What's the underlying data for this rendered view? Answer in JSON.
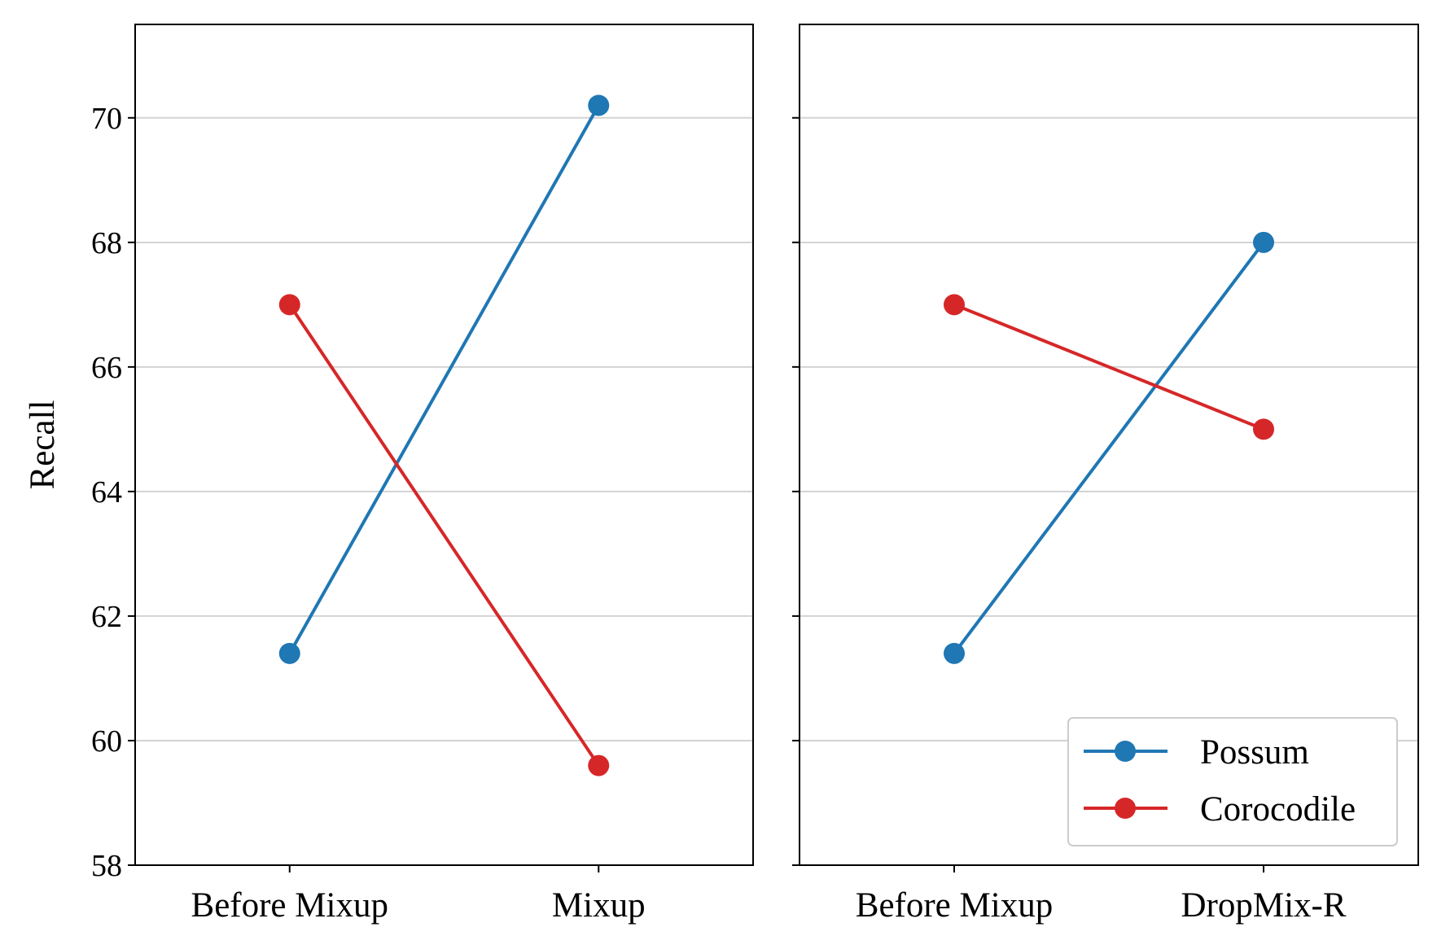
{
  "chart_data": [
    {
      "type": "line",
      "categories": [
        "Before Mixup",
        "Mixup"
      ],
      "ylabel": "Recall",
      "xlabel": "",
      "ylim": [
        58,
        71.5
      ],
      "yticks": [
        58,
        60,
        62,
        64,
        66,
        68,
        70
      ],
      "grid": "horizontal",
      "series": [
        {
          "name": "Possum",
          "values": [
            61.4,
            70.2
          ],
          "color": "#1f77b4"
        },
        {
          "name": "Corocodile",
          "values": [
            67.0,
            59.6
          ],
          "color": "#d62728"
        }
      ]
    },
    {
      "type": "line",
      "categories": [
        "Before Mixup",
        "DropMix-R"
      ],
      "xlabel": "",
      "ylim": [
        58,
        71.5
      ],
      "yticks": [
        58,
        60,
        62,
        64,
        66,
        68,
        70
      ],
      "grid": "horizontal",
      "legend": "bottom-right",
      "series": [
        {
          "name": "Possum",
          "values": [
            61.4,
            68.0
          ],
          "color": "#1f77b4"
        },
        {
          "name": "Corocodile",
          "values": [
            67.0,
            65.0
          ],
          "color": "#d62728"
        }
      ]
    }
  ]
}
